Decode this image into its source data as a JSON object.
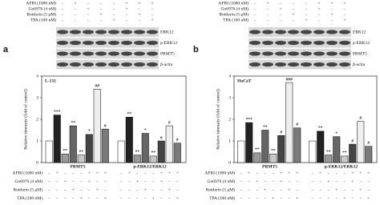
{
  "panels": [
    "a",
    "b"
  ],
  "treatments": [
    {
      "label": "AFBI (1000 nM)",
      "signs": [
        "-",
        "+",
        "-",
        "-",
        "-",
        "+",
        "+",
        "+"
      ]
    },
    {
      "label": "Go6976 (4 nM)",
      "signs": [
        "-",
        "-",
        "+",
        "-",
        "-",
        "+",
        "-",
        "-"
      ]
    },
    {
      "label": "Rottlerin (5 μM)",
      "signs": [
        "-",
        "-",
        "-",
        "+",
        "-",
        "-",
        "+",
        "-"
      ]
    },
    {
      "label": "TPA (100 nM)",
      "signs": [
        "-",
        "-",
        "-",
        "-",
        "+",
        "-",
        "-",
        "+"
      ]
    }
  ],
  "blots": [
    "ERK12",
    "p-ERK12",
    "PRMT5",
    "β-actin"
  ],
  "chart_data": [
    {
      "type": "bar",
      "label": "L-132",
      "ylabel": "Relative intensity (fold of control)",
      "categories": [
        "PRMT5",
        "p-ERK12/ERK12"
      ],
      "ylim": [
        0,
        4
      ],
      "yticks": [
        0,
        1,
        2,
        3,
        4
      ],
      "series": [
        {
          "color": "#ffffff",
          "values": [
            1.0,
            1.0
          ],
          "significance": [
            null,
            null
          ]
        },
        {
          "color": "#222222",
          "values": [
            2.2,
            2.1
          ],
          "significance": [
            "***",
            "**"
          ]
        },
        {
          "color": "#9a9a9a",
          "values": [
            0.4,
            0.35
          ],
          "significance": [
            "**",
            "**"
          ]
        },
        {
          "color": "#666666",
          "values": [
            1.7,
            1.35
          ],
          "significance": [
            "**",
            "*"
          ]
        },
        {
          "color": "#c8c8c8",
          "values": [
            0.35,
            0.3
          ],
          "significance": [
            "**",
            "**"
          ]
        },
        {
          "color": "#444444",
          "values": [
            1.3,
            1.0
          ],
          "significance": [
            "*",
            "#"
          ]
        },
        {
          "color": "#eeeeee",
          "values": [
            3.4,
            1.7
          ],
          "significance": [
            "##",
            "#"
          ]
        },
        {
          "color": "#7a7a7a",
          "values": [
            1.55,
            0.9
          ],
          "significance": [
            "#",
            "#"
          ]
        }
      ]
    },
    {
      "type": "bar",
      "label": "HaCaT",
      "ylabel": "Relative intensity (fold of control)",
      "categories": [
        "PRMT5",
        "p-ERK12/ERK12"
      ],
      "ylim": [
        0,
        4
      ],
      "yticks": [
        0,
        1,
        2,
        3,
        4
      ],
      "series": [
        {
          "color": "#ffffff",
          "values": [
            1.0,
            1.0
          ],
          "significance": [
            null,
            null
          ]
        },
        {
          "color": "#222222",
          "values": [
            1.85,
            1.45
          ],
          "significance": [
            "***",
            "**"
          ]
        },
        {
          "color": "#9a9a9a",
          "values": [
            0.45,
            0.35
          ],
          "significance": [
            "**",
            "**"
          ]
        },
        {
          "color": "#666666",
          "values": [
            1.5,
            1.2
          ],
          "significance": [
            "**",
            "*"
          ]
        },
        {
          "color": "#c8c8c8",
          "values": [
            0.4,
            0.3
          ],
          "significance": [
            "**",
            "**"
          ]
        },
        {
          "color": "#444444",
          "values": [
            1.25,
            0.85
          ],
          "significance": [
            "#",
            "#"
          ]
        },
        {
          "color": "#eeeeee",
          "values": [
            3.7,
            1.9
          ],
          "significance": [
            "###",
            "#"
          ]
        },
        {
          "color": "#7a7a7a",
          "values": [
            1.6,
            0.75
          ],
          "significance": [
            "#",
            "#"
          ]
        }
      ]
    }
  ]
}
